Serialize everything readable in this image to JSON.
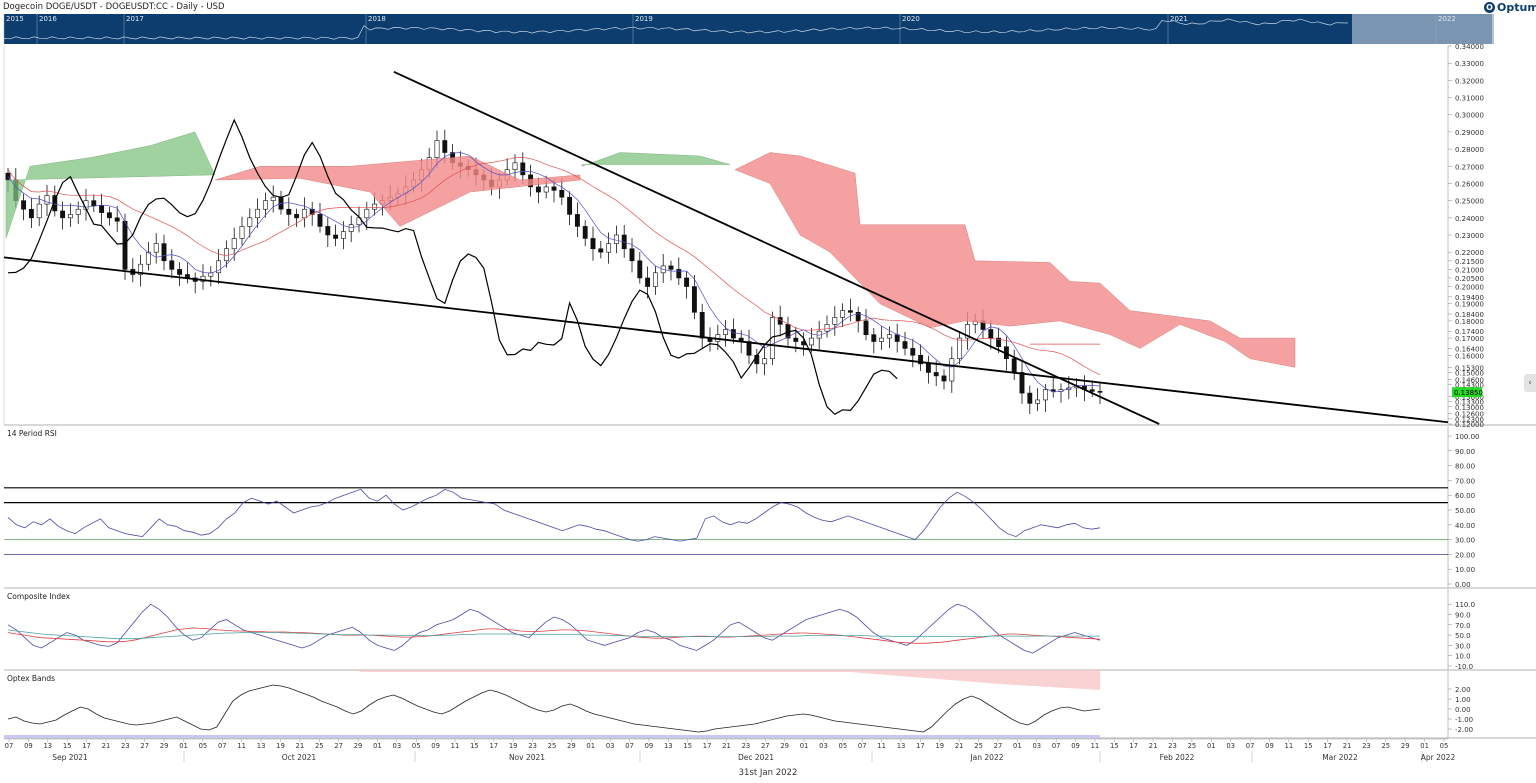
{
  "header": {
    "title": "Dogecoin DOGE/USDT - DOGEUSDT:CC - Daily - USD",
    "logo": "Optuma",
    "logo_icon": "optuma-logo-icon"
  },
  "colors": {
    "navigator_bg": "#0c3d6e",
    "cloud_bull": "#7fc37f",
    "cloud_bear": "#f58a8a",
    "kijun": "#e05050",
    "tenkan": "#5050c8",
    "chikou": "#000000",
    "rsi_line": "#4a4aa8",
    "rsi_30": "#5aa05a",
    "rsi_20": "#3a3a8a",
    "ci_fast": "#4a4aa8",
    "ci_red": "#e04040",
    "ci_teal": "#4aa0a0",
    "optex_band": "#f7c8c8",
    "price_tag": "#27d827"
  },
  "navigator": {
    "years": [
      "2015",
      "2016",
      "2017",
      "2018",
      "2019",
      "2020",
      "2021",
      "2022"
    ]
  },
  "price_panel": {
    "axis_labels": [
      "0.34000",
      "0.33000",
      "0.32000",
      "0.31000",
      "0.30000",
      "0.29000",
      "0.28000",
      "0.27000",
      "0.26000",
      "0.25000",
      "0.24000",
      "0.23000",
      "0.22000",
      "0.21500",
      "0.21000",
      "0.20500",
      "0.20000",
      "0.19400",
      "0.19000",
      "0.18400",
      "0.18000",
      "0.17400",
      "0.17000",
      "0.16400",
      "0.16000",
      "0.15300",
      "0.15000",
      "0.14600",
      "0.14300",
      "0.13600",
      "0.13300",
      "0.13000",
      "0.12600",
      "0.12300",
      "0.12000"
    ],
    "last_price_tag": "0.13850"
  },
  "rsi_panel": {
    "title": "14 Period RSI",
    "axis_labels": [
      "100.00",
      "90.00",
      "80.00",
      "70.00",
      "60.00",
      "50.00",
      "40.00",
      "30.00",
      "20.00",
      "10.00",
      "0.00"
    ]
  },
  "composite_panel": {
    "title": "Composite Index",
    "axis_labels": [
      "110.0",
      "90.0",
      "70.0",
      "50.0",
      "30.0",
      "10.0",
      "-10.0"
    ]
  },
  "optex_panel": {
    "title": "Optex Bands",
    "axis_labels": [
      "2.00",
      "1.00",
      "0.00",
      "-1.00",
      "-2.00"
    ]
  },
  "time_axis": {
    "days": [
      "07",
      "09",
      "13",
      "15",
      "17",
      "21",
      "23",
      "27",
      "29",
      "01",
      "05",
      "07",
      "11",
      "13",
      "19",
      "21",
      "25",
      "27",
      "29",
      "01",
      "03",
      "05",
      "09",
      "11",
      "15",
      "17",
      "19",
      "23",
      "25",
      "29",
      "01",
      "03",
      "07",
      "09",
      "13",
      "15",
      "17",
      "21",
      "23",
      "27",
      "29",
      "01",
      "03",
      "05",
      "07",
      "11",
      "13",
      "17",
      "19",
      "21",
      "25",
      "27",
      "01",
      "03",
      "07",
      "09",
      "11",
      "15",
      "17",
      "21",
      "23",
      "25",
      "01",
      "03",
      "07",
      "09",
      "11",
      "15",
      "17",
      "21",
      "23",
      "25",
      "29",
      "01",
      "05"
    ],
    "months": [
      "Sep 2021",
      "Oct 2021",
      "Nov 2021",
      "Dec 2021",
      "Jan 2022",
      "Feb 2022",
      "Mar 2022",
      "Apr 2022"
    ],
    "footer_date": "31st Jan 2022"
  },
  "chart_data": {
    "type": "candlestick",
    "title": "Dogecoin DOGE/USDT - DOGEUSDT:CC - Daily - USD",
    "ylim": [
      0.12,
      0.34
    ],
    "approx_close": [
      0.262,
      0.25,
      0.245,
      0.24,
      0.248,
      0.253,
      0.244,
      0.24,
      0.242,
      0.245,
      0.25,
      0.247,
      0.243,
      0.24,
      0.238,
      0.21,
      0.207,
      0.213,
      0.22,
      0.225,
      0.215,
      0.21,
      0.207,
      0.205,
      0.203,
      0.206,
      0.208,
      0.215,
      0.222,
      0.228,
      0.235,
      0.24,
      0.245,
      0.25,
      0.252,
      0.245,
      0.242,
      0.24,
      0.245,
      0.242,
      0.235,
      0.23,
      0.228,
      0.232,
      0.236,
      0.24,
      0.245,
      0.248,
      0.25,
      0.252,
      0.254,
      0.258,
      0.262,
      0.268,
      0.275,
      0.285,
      0.278,
      0.272,
      0.27,
      0.268,
      0.265,
      0.262,
      0.258,
      0.262,
      0.268,
      0.272,
      0.265,
      0.258,
      0.255,
      0.258,
      0.256,
      0.252,
      0.242,
      0.235,
      0.228,
      0.222,
      0.22,
      0.225,
      0.23,
      0.222,
      0.215,
      0.205,
      0.2,
      0.208,
      0.212,
      0.21,
      0.205,
      0.2,
      0.185,
      0.17,
      0.168,
      0.172,
      0.175,
      0.17,
      0.168,
      0.16,
      0.155,
      0.158,
      0.182,
      0.178,
      0.17,
      0.168,
      0.166,
      0.17,
      0.174,
      0.178,
      0.182,
      0.186,
      0.185,
      0.18,
      0.172,
      0.168,
      0.17,
      0.172,
      0.168,
      0.164,
      0.16,
      0.155,
      0.15,
      0.148,
      0.145,
      0.158,
      0.17,
      0.178,
      0.18,
      0.175,
      0.17,
      0.165,
      0.158,
      0.15,
      0.138,
      0.132,
      0.134,
      0.14,
      0.139,
      0.14,
      0.141,
      0.142,
      0.14,
      0.139,
      0.1385
    ],
    "last_price": 0.1385,
    "ichimoku_cloud": "Kumo shaded green (bullish) and red (bearish)",
    "trendlines": [
      {
        "from": [
          0.0,
          0.217
        ],
        "to": [
          1.0,
          0.121
        ]
      },
      {
        "from": [
          0.27,
          0.325
        ],
        "to": [
          0.8,
          0.12
        ]
      }
    ],
    "rsi": {
      "period": 14,
      "ylim": [
        0,
        100
      ],
      "levels": [
        65,
        55,
        30,
        20
      ],
      "values": [
        45,
        40,
        38,
        42,
        40,
        44,
        39,
        36,
        34,
        38,
        41,
        44,
        38,
        36,
        34,
        33,
        32,
        38,
        44,
        40,
        39,
        36,
        35,
        33,
        34,
        38,
        44,
        48,
        55,
        58,
        56,
        54,
        56,
        52,
        48,
        50,
        52,
        53,
        55,
        58,
        60,
        62,
        64,
        58,
        56,
        60,
        54,
        50,
        52,
        55,
        58,
        60,
        64,
        62,
        58,
        57,
        56,
        55,
        54,
        50,
        48,
        46,
        44,
        42,
        40,
        38,
        36,
        38,
        40,
        39,
        37,
        36,
        34,
        32,
        30,
        29,
        30,
        32,
        31,
        30,
        29,
        30,
        31,
        44,
        46,
        42,
        40,
        42,
        41,
        44,
        48,
        52,
        55,
        54,
        52,
        48,
        45,
        43,
        42,
        44,
        46,
        44,
        42,
        40,
        38,
        36,
        34,
        32,
        30,
        36,
        44,
        52,
        58,
        62,
        59,
        55,
        50,
        44,
        38,
        34,
        32,
        36,
        38,
        40,
        39,
        38,
        40,
        41,
        38,
        37,
        38
      ]
    },
    "composite_index": {
      "ylim": [
        -10,
        120
      ],
      "series": [
        {
          "values": [
            70,
            60,
            45,
            30,
            25,
            35,
            45,
            55,
            50,
            40,
            35,
            30,
            28,
            35,
            55,
            75,
            95,
            110,
            100,
            85,
            65,
            50,
            40,
            45,
            60,
            75,
            80,
            70,
            60,
            55,
            50,
            45,
            40,
            35,
            30,
            25,
            30,
            40,
            50,
            55,
            60,
            65,
            55,
            40,
            30,
            25,
            20,
            30,
            45,
            55,
            60,
            70,
            75,
            80,
            90,
            100,
            95,
            85,
            75,
            65,
            55,
            50,
            45,
            60,
            75,
            85,
            80,
            70,
            55,
            40,
            35,
            30,
            35,
            40,
            45,
            55,
            60,
            55,
            45,
            40,
            30,
            25,
            20,
            30,
            40,
            55,
            70,
            75,
            65,
            55,
            45,
            40,
            50,
            60,
            70,
            80,
            85,
            90,
            95,
            100,
            95,
            85,
            70,
            55,
            45,
            40,
            35,
            30,
            40,
            55,
            70,
            85,
            100,
            110,
            105,
            95,
            80,
            65,
            50,
            40,
            30,
            20,
            15,
            25,
            35,
            45,
            50,
            55,
            50,
            45,
            40
          ]
        },
        {
          "values": [
            55,
            52,
            50,
            47,
            45,
            44,
            43,
            42,
            41,
            40,
            39,
            38,
            37,
            37,
            38,
            40,
            44,
            48,
            52,
            56,
            60,
            62,
            64,
            63,
            62,
            60,
            59,
            58,
            58,
            57,
            57,
            56,
            56,
            56,
            55,
            55,
            54,
            53,
            52,
            51,
            50,
            50,
            50,
            50,
            49,
            48,
            47,
            46,
            46,
            47,
            48,
            50,
            52,
            54,
            56,
            58,
            60,
            62,
            62,
            61,
            60,
            58,
            57,
            57,
            58,
            59,
            60,
            60,
            59,
            58,
            56,
            54,
            52,
            50,
            48,
            46,
            45,
            44,
            44,
            45,
            46,
            47,
            48,
            48,
            47,
            46,
            46,
            47,
            48,
            49,
            50,
            51,
            52,
            53,
            54,
            54,
            53,
            52,
            51,
            50,
            48,
            46,
            44,
            42,
            40,
            38,
            36,
            35,
            34,
            34,
            35,
            36,
            38,
            40,
            42,
            44,
            46,
            48,
            50,
            52,
            52,
            51,
            50,
            49,
            48,
            47,
            46,
            45,
            44,
            43,
            42
          ]
        },
        {
          "values": [
            60,
            58,
            56,
            54,
            52,
            51,
            50,
            49,
            48,
            47,
            46,
            45,
            44,
            43,
            43,
            43,
            44,
            45,
            46,
            47,
            48,
            49,
            50,
            51,
            52,
            53,
            54,
            54,
            55,
            55,
            55,
            55,
            55,
            54,
            54,
            53,
            53,
            52,
            52,
            51,
            51,
            51,
            51,
            50,
            50,
            50,
            50,
            49,
            49,
            49,
            49,
            49,
            50,
            50,
            51,
            51,
            52,
            52,
            52,
            52,
            52,
            51,
            51,
            51,
            51,
            51,
            51,
            51,
            51,
            50,
            50,
            50,
            49,
            49,
            48,
            48,
            47,
            47,
            47,
            47,
            47,
            47,
            47,
            47,
            47,
            47,
            47,
            47,
            47,
            47,
            47,
            48,
            48,
            48,
            48,
            49,
            49,
            49,
            49,
            49,
            49,
            49,
            49,
            48,
            48,
            48,
            47,
            47,
            47,
            47,
            47,
            47,
            47,
            47,
            47,
            47,
            47,
            48,
            48,
            48,
            48,
            48,
            48,
            48,
            48,
            48,
            48,
            48,
            48,
            48,
            48
          ]
        }
      ]
    },
    "optex_bands": {
      "ylim": [
        -2.5,
        2.8
      ],
      "values": [
        -1,
        -0.8,
        -1.2,
        -1.4,
        -1.5,
        -1.3,
        -1.1,
        -0.6,
        -0.2,
        0.2,
        0,
        -0.5,
        -0.9,
        -1.1,
        -1.3,
        -1.5,
        -1.6,
        -1.5,
        -1.4,
        -1.2,
        -1,
        -0.8,
        -1.2,
        -1.6,
        -2,
        -2.1,
        -1.8,
        -0.5,
        0.8,
        1.4,
        1.8,
        2,
        2.2,
        2.4,
        2.3,
        2.1,
        1.8,
        1.5,
        1.2,
        0.8,
        0.5,
        0.2,
        -0.2,
        -0.5,
        -0.2,
        0.4,
        0.9,
        1.2,
        1.4,
        1.1,
        0.7,
        0.3,
        0,
        -0.3,
        -0.5,
        -0.2,
        0.3,
        0.8,
        1.2,
        1.6,
        1.9,
        1.7,
        1.4,
        1,
        0.6,
        0.2,
        -0.1,
        -0.3,
        -0.1,
        0.3,
        0.5,
        0.2,
        -0.2,
        -0.5,
        -0.7,
        -0.9,
        -1.1,
        -1.3,
        -1.5,
        -1.6,
        -1.7,
        -1.8,
        -1.9,
        -2,
        -2.1,
        -2.2,
        -2.3,
        -2.2,
        -2,
        -1.9,
        -1.8,
        -1.7,
        -1.6,
        -1.5,
        -1.3,
        -1.1,
        -0.9,
        -0.7,
        -0.6,
        -0.5,
        -0.6,
        -0.8,
        -1,
        -1.2,
        -1.3,
        -1.4,
        -1.5,
        -1.6,
        -1.7,
        -1.8,
        -1.9,
        -2,
        -2.1,
        -2.2,
        -2.3,
        -1.8,
        -1,
        -0.2,
        0.5,
        1,
        1.3,
        1,
        0.5,
        0,
        -0.5,
        -1,
        -1.4,
        -1.6,
        -1.2,
        -0.6,
        -0.2,
        0.1,
        0.2,
        0,
        -0.2,
        -0.1,
        0
      ]
    }
  }
}
